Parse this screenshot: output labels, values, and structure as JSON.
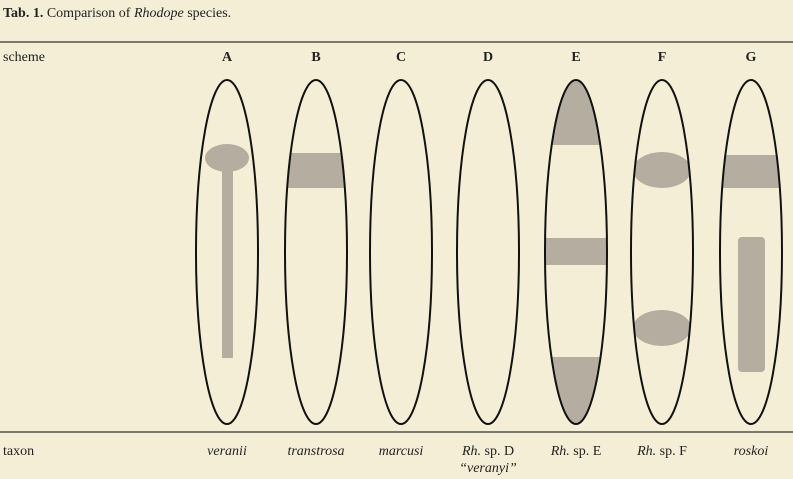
{
  "title": {
    "label": "Tab. 1.",
    "before": "Comparison of",
    "genus": "Rhodope",
    "after": "species."
  },
  "row_labels": [
    "scheme",
    "taxon"
  ],
  "columns": [
    {
      "letter": "A",
      "taxon": "veranii"
    },
    {
      "letter": "B",
      "taxon": "transtrosa"
    },
    {
      "letter": "C",
      "taxon": "marcusi"
    },
    {
      "letter": "D",
      "genus_abbr": "Rh.",
      "taxon": "sp. D",
      "synonym": "“veranyi”"
    },
    {
      "letter": "E",
      "genus_abbr": "Rh.",
      "taxon": "sp. E"
    },
    {
      "letter": "F",
      "genus_abbr": "Rh.",
      "taxon": "sp. F"
    },
    {
      "letter": "G",
      "taxon": "roskoi"
    }
  ]
}
